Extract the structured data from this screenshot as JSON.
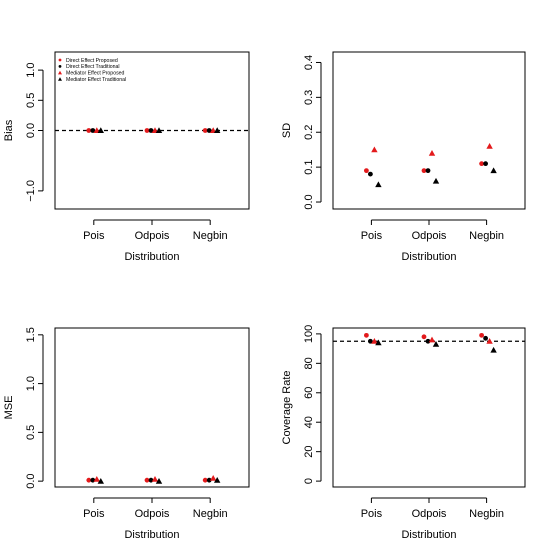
{
  "chart_data": [
    {
      "type": "scatter",
      "xlabel": "Distribution",
      "ylabel": "Bias",
      "categories": [
        "Pois",
        "Odpois",
        "Negbin"
      ],
      "ylim": [
        -1.3,
        1.3
      ],
      "yticks": [
        -1.0,
        0.0,
        0.5,
        1.0
      ],
      "ytick_labels": [
        "−1.0",
        "0.0",
        "0.5",
        "1.0"
      ],
      "reference_line": 0,
      "legend": {
        "placement": "top-left",
        "entries": [
          "Direct Effect Proposed",
          "Direct Effect Traditional",
          "Mediator Effect Proposed",
          "Mediator Effect Traditional"
        ]
      },
      "series": [
        {
          "name": "Direct Effect Proposed",
          "values": [
            0.0,
            0.0,
            0.0
          ]
        },
        {
          "name": "Direct Effect Traditional",
          "values": [
            0.0,
            0.0,
            0.0
          ]
        },
        {
          "name": "Mediator Effect Proposed",
          "values": [
            0.0,
            0.0,
            0.0
          ]
        },
        {
          "name": "Mediator Effect Traditional",
          "values": [
            0.0,
            0.0,
            0.0
          ]
        }
      ]
    },
    {
      "type": "scatter",
      "xlabel": "Distribution",
      "ylabel": "SD",
      "categories": [
        "Pois",
        "Odpois",
        "Negbin"
      ],
      "ylim": [
        -0.02,
        0.43
      ],
      "yticks": [
        0.0,
        0.1,
        0.2,
        0.3,
        0.4
      ],
      "ytick_labels": [
        "0.0",
        "0.1",
        "0.2",
        "0.3",
        "0.4"
      ],
      "series": [
        {
          "name": "Direct Effect Proposed",
          "values": [
            0.09,
            0.09,
            0.11
          ]
        },
        {
          "name": "Direct Effect Traditional",
          "values": [
            0.08,
            0.09,
            0.11
          ]
        },
        {
          "name": "Mediator Effect Proposed",
          "values": [
            0.15,
            0.14,
            0.16
          ]
        },
        {
          "name": "Mediator Effect Traditional",
          "values": [
            0.05,
            0.06,
            0.09
          ]
        }
      ]
    },
    {
      "type": "scatter",
      "xlabel": "Distribution",
      "ylabel": "MSE",
      "categories": [
        "Pois",
        "Odpois",
        "Negbin"
      ],
      "ylim": [
        -0.06,
        1.57
      ],
      "yticks": [
        0.0,
        0.5,
        1.0,
        1.5
      ],
      "ytick_labels": [
        "0.0",
        "0.5",
        "1.0",
        "1.5"
      ],
      "series": [
        {
          "name": "Direct Effect Proposed",
          "values": [
            0.01,
            0.01,
            0.01
          ]
        },
        {
          "name": "Direct Effect Traditional",
          "values": [
            0.01,
            0.01,
            0.01
          ]
        },
        {
          "name": "Mediator Effect Proposed",
          "values": [
            0.02,
            0.02,
            0.03
          ]
        },
        {
          "name": "Mediator Effect Traditional",
          "values": [
            0.0,
            0.0,
            0.01
          ]
        }
      ]
    },
    {
      "type": "scatter",
      "xlabel": "Distribution",
      "ylabel": "Coverage Rate",
      "categories": [
        "Pois",
        "Odpois",
        "Negbin"
      ],
      "ylim": [
        -4,
        104
      ],
      "yticks": [
        0,
        20,
        40,
        60,
        80,
        100
      ],
      "ytick_labels": [
        "0",
        "20",
        "40",
        "60",
        "80",
        "100"
      ],
      "reference_line": 95,
      "series": [
        {
          "name": "Direct Effect Proposed",
          "values": [
            99,
            98,
            99
          ]
        },
        {
          "name": "Direct Effect Traditional",
          "values": [
            95,
            95,
            97
          ]
        },
        {
          "name": "Mediator Effect Proposed",
          "values": [
            95,
            96,
            95
          ]
        },
        {
          "name": "Mediator Effect Traditional",
          "values": [
            94,
            93,
            89
          ]
        }
      ]
    }
  ],
  "style": {
    "series_colors": [
      "#e31a1c",
      "#000000",
      "#e31a1c",
      "#000000"
    ],
    "series_markers": [
      "circle",
      "circle",
      "triangle",
      "triangle"
    ]
  }
}
